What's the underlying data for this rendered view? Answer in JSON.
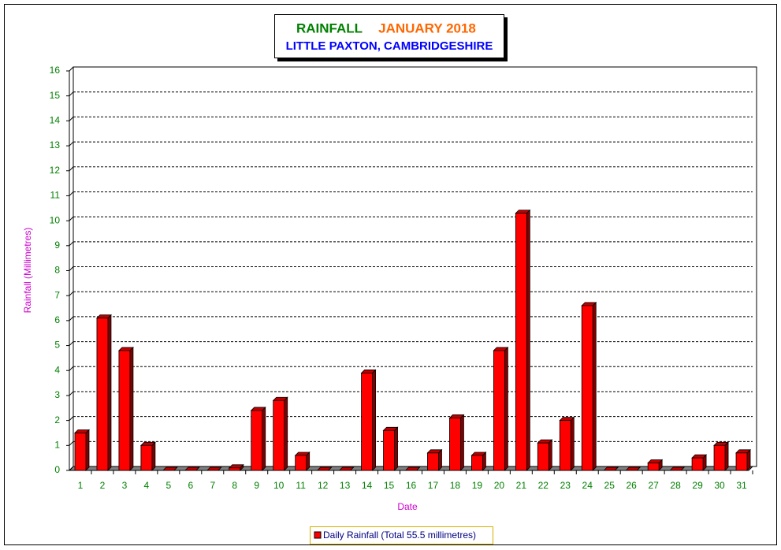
{
  "chart_data": {
    "type": "bar",
    "title": "RAINFALL",
    "title_date": "JANUARY 2018",
    "subtitle": "LITTLE PAXTON, CAMBRIDGESHIRE",
    "x_label": "Date",
    "y_label": "Rainfall  (Millimetres)",
    "categories": [
      "1",
      "2",
      "3",
      "4",
      "5",
      "6",
      "7",
      "8",
      "9",
      "10",
      "11",
      "12",
      "13",
      "14",
      "15",
      "16",
      "17",
      "18",
      "19",
      "20",
      "21",
      "22",
      "23",
      "24",
      "25",
      "26",
      "27",
      "28",
      "29",
      "30",
      "31"
    ],
    "series": [
      {
        "name": "Daily Rainfall (Total 55.5 millimetres)",
        "color": "#ff0000",
        "values": [
          1.5,
          6.1,
          4.8,
          1.0,
          0,
          0,
          0,
          0.1,
          2.4,
          2.8,
          0.6,
          0,
          0,
          3.9,
          1.6,
          0,
          0.7,
          2.1,
          0.6,
          4.8,
          10.3,
          1.1,
          2.0,
          6.6,
          0,
          0,
          0.3,
          0,
          0.5,
          1.0,
          0.7
        ]
      }
    ],
    "ylim": [
      0,
      16
    ],
    "yticks": [
      0,
      1,
      2,
      3,
      4,
      5,
      6,
      7,
      8,
      9,
      10,
      11,
      12,
      13,
      14,
      15,
      16
    ],
    "grid": true
  }
}
